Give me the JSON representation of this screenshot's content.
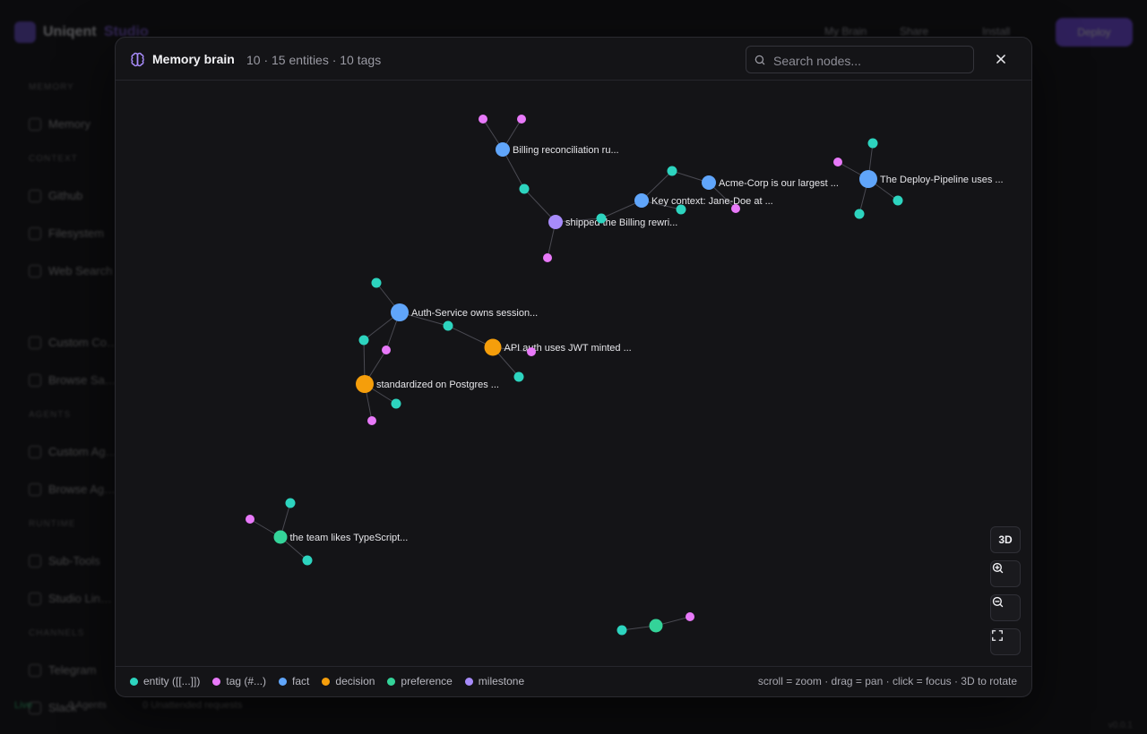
{
  "background": {
    "brand": "Uniqent",
    "brand_sub": "Studio",
    "top_items": [
      "My Brain",
      "Share",
      "Install"
    ],
    "cta": "Deploy",
    "sections": [
      {
        "title": "MEMORY",
        "items": [
          "Memory"
        ]
      },
      {
        "title": "CONTEXT",
        "items": [
          "Github",
          "Filesystem",
          "Web Search"
        ]
      },
      {
        "title": "",
        "items": [
          "Custom Co…",
          "Browse Sa…"
        ]
      },
      {
        "title": "AGENTS",
        "items": [
          "Custom Ag…",
          "Browse Ag…"
        ]
      },
      {
        "title": "RUNTIME",
        "items": [
          "Sub-Tools",
          "Studio Lin…"
        ]
      },
      {
        "title": "CHANNELS",
        "items": [
          "Telegram",
          "Slack"
        ]
      }
    ],
    "footer": [
      "Live",
      "0 Agents",
      "0 Unattended requests"
    ],
    "version": "v0.0.1"
  },
  "modal": {
    "title": "Memory brain",
    "stats": "10 · 15 entities · 10 tags",
    "search_placeholder": "Search nodes...",
    "controls": {
      "three_d": "3D"
    },
    "legend": [
      {
        "label": "entity ([[...]])",
        "color": "#2dd4bf"
      },
      {
        "label": "tag (#...)",
        "color": "#e879f9"
      },
      {
        "label": "fact",
        "color": "#60a5fa"
      },
      {
        "label": "decision",
        "color": "#f59e0b"
      },
      {
        "label": "preference",
        "color": "#34d399"
      },
      {
        "label": "milestone",
        "color": "#a78bfa"
      }
    ],
    "hint": "scroll = zoom · drag = pan · click = focus · 3D to rotate"
  },
  "graph": {
    "nodes": [
      {
        "id": "n1",
        "type": "fact",
        "label": "Billing reconciliation ru..."
      },
      {
        "id": "n2",
        "type": "milestone",
        "label": "shipped the Billing rewri..."
      },
      {
        "id": "n3",
        "type": "fact",
        "label": "Key context: Jane-Doe at ..."
      },
      {
        "id": "n4",
        "type": "fact",
        "label": "Acme-Corp is our largest ..."
      },
      {
        "id": "n5",
        "type": "fact",
        "label": "The Deploy-Pipeline uses ..."
      },
      {
        "id": "n6",
        "type": "fact",
        "label": "Auth-Service owns session..."
      },
      {
        "id": "n7",
        "type": "decision",
        "label": "API auth uses JWT minted ..."
      },
      {
        "id": "n8",
        "type": "decision",
        "label": "standardized on Postgres ..."
      },
      {
        "id": "n9",
        "type": "preference",
        "label": "the team likes TypeScript..."
      },
      {
        "id": "n10",
        "type": "preference",
        "label": ""
      },
      {
        "id": "t1",
        "type": "tag",
        "label": ""
      },
      {
        "id": "t2",
        "type": "tag",
        "label": ""
      },
      {
        "id": "t3",
        "type": "tag",
        "label": ""
      },
      {
        "id": "t4",
        "type": "tag",
        "label": ""
      },
      {
        "id": "t5",
        "type": "tag",
        "label": ""
      },
      {
        "id": "t6",
        "type": "tag",
        "label": ""
      },
      {
        "id": "t7",
        "type": "tag",
        "label": ""
      },
      {
        "id": "t8",
        "type": "tag",
        "label": ""
      },
      {
        "id": "t9",
        "type": "tag",
        "label": ""
      },
      {
        "id": "t10",
        "type": "tag",
        "label": ""
      },
      {
        "id": "e1",
        "type": "entity",
        "label": ""
      },
      {
        "id": "e2",
        "type": "entity",
        "label": ""
      },
      {
        "id": "e3",
        "type": "entity",
        "label": ""
      },
      {
        "id": "e4",
        "type": "entity",
        "label": ""
      },
      {
        "id": "e5",
        "type": "entity",
        "label": ""
      },
      {
        "id": "e6",
        "type": "entity",
        "label": ""
      },
      {
        "id": "e7",
        "type": "entity",
        "label": ""
      },
      {
        "id": "e8",
        "type": "entity",
        "label": ""
      },
      {
        "id": "e9",
        "type": "entity",
        "label": ""
      },
      {
        "id": "e10",
        "type": "entity",
        "label": ""
      },
      {
        "id": "e11",
        "type": "entity",
        "label": ""
      },
      {
        "id": "e12",
        "type": "entity",
        "label": ""
      },
      {
        "id": "e13",
        "type": "entity",
        "label": ""
      },
      {
        "id": "e14",
        "type": "entity",
        "label": ""
      },
      {
        "id": "e15",
        "type": "entity",
        "label": ""
      }
    ],
    "edges": [
      [
        "n1",
        "t1"
      ],
      [
        "n1",
        "t2"
      ],
      [
        "n1",
        "e1"
      ],
      [
        "e1",
        "n2"
      ],
      [
        "n2",
        "t3"
      ],
      [
        "n2",
        "e2"
      ],
      [
        "e2",
        "n3"
      ],
      [
        "n3",
        "e3"
      ],
      [
        "e3",
        "n4"
      ],
      [
        "n3",
        "e4"
      ],
      [
        "n4",
        "t4"
      ],
      [
        "n5",
        "e5"
      ],
      [
        "n5",
        "t5"
      ],
      [
        "n5",
        "e6"
      ],
      [
        "n5",
        "e7"
      ],
      [
        "n6",
        "e8"
      ],
      [
        "n6",
        "e9"
      ],
      [
        "n6",
        "t6"
      ],
      [
        "n6",
        "e10"
      ],
      [
        "e10",
        "n7"
      ],
      [
        "n7",
        "t7"
      ],
      [
        "n7",
        "e11"
      ],
      [
        "e9",
        "n8"
      ],
      [
        "t6",
        "n8"
      ],
      [
        "n8",
        "e12"
      ],
      [
        "n8",
        "t8"
      ],
      [
        "n9",
        "e13"
      ],
      [
        "n9",
        "t9"
      ],
      [
        "n9",
        "e14"
      ],
      [
        "n10",
        "e15"
      ],
      [
        "n10",
        "t10"
      ]
    ]
  }
}
